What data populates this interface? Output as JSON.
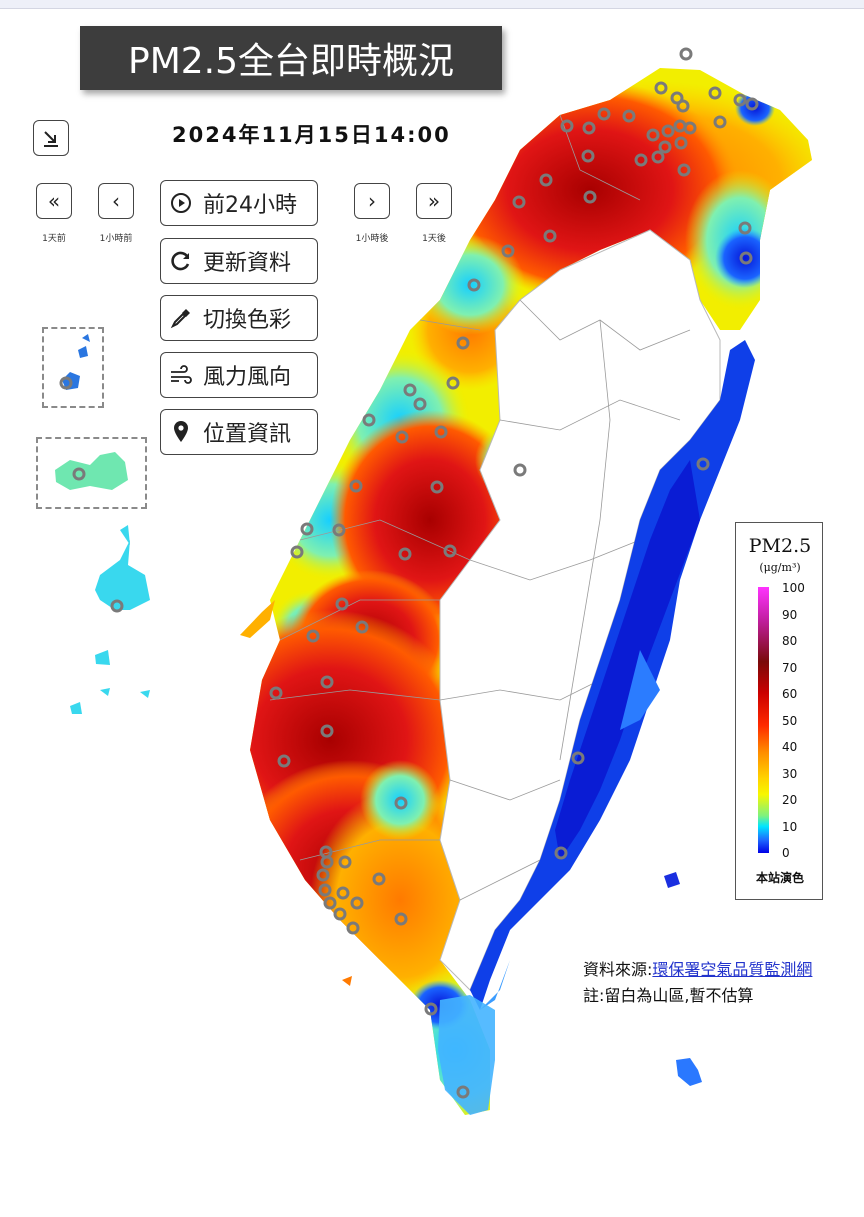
{
  "title": "PM2.5全台即時概況",
  "datetime": "2024年11月15日14:00",
  "nav": {
    "day_back": {
      "label": "1天前"
    },
    "hour_back": {
      "label": "1小時前"
    },
    "hour_forward": {
      "label": "1小時後"
    },
    "day_forward": {
      "label": "1天後"
    }
  },
  "buttons": {
    "past24": "前24小時",
    "refresh": "更新資料",
    "colors": "切換色彩",
    "wind": "風力風向",
    "location": "位置資訊"
  },
  "legend": {
    "title": "PM2.5",
    "unit": "(μg/m³)",
    "ticks": [
      "100",
      "90",
      "80",
      "70",
      "60",
      "50",
      "40",
      "30",
      "20",
      "10",
      "0"
    ],
    "footer": "本站演色"
  },
  "source": {
    "label": "資料來源:",
    "link_text": "環保署空氣品質監測網",
    "note": "註:留白為山區,暫不估算"
  },
  "colors": {
    "clean": "#0a2fe0",
    "good": "#19d8ff",
    "moderate": "#f7ef00",
    "sensitive": "#ff9a00",
    "unhealthy": "#e31a1a",
    "very_unhealthy": "#b00000"
  }
}
